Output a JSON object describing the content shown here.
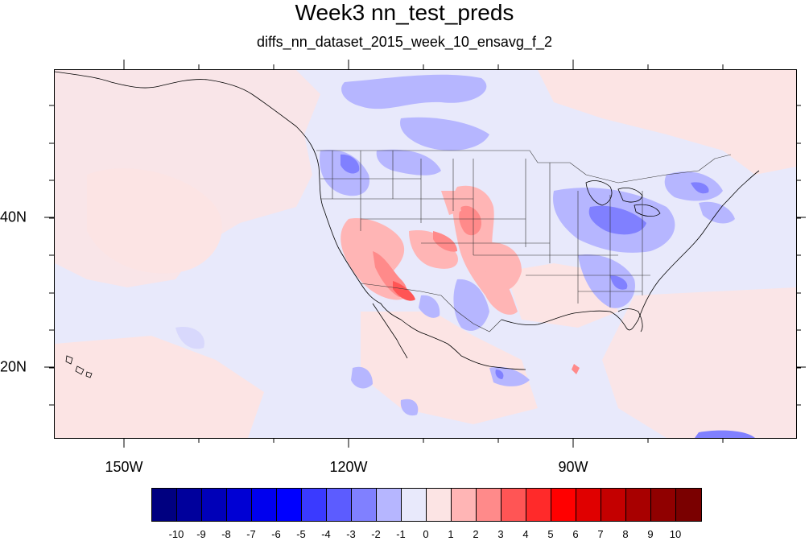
{
  "title": "Week3 nn_test_preds",
  "subtitle": "diffs_nn_dataset_2015_week_10_ensavg_f_2",
  "map": {
    "lon_range": [
      -160,
      -62
    ],
    "lat_range": [
      11,
      60
    ],
    "lon_ticks": [
      "150W",
      "120W",
      "90W"
    ],
    "lat_ticks": [
      "40N",
      "20N"
    ],
    "background_color": "#e8e9fb",
    "pattern": "near-zero differences dominate; positive (red) anomalies over the U.S. Southwest, southern Plains and Texas; negative (blue) anomalies over the Pacific Northwest, Ohio Valley, Southeast and Northeast"
  },
  "colorbar": {
    "labels": [
      "-10",
      "-9",
      "-8",
      "-7",
      "-6",
      "-5",
      "-4",
      "-3",
      "-2",
      "-1",
      "0",
      "1",
      "2",
      "3",
      "4",
      "5",
      "6",
      "7",
      "8",
      "9",
      "10"
    ],
    "colors": [
      "#000080",
      "#00009c",
      "#0000b8",
      "#0000d4",
      "#0000ee",
      "#0000ff",
      "#3a3aff",
      "#5c5cff",
      "#8080ff",
      "#b6b6ff",
      "#e8e9fb",
      "#fce4e4",
      "#ffb5b5",
      "#ff8a8a",
      "#ff5555",
      "#ff2a2a",
      "#ff0000",
      "#e00000",
      "#c40000",
      "#a80000",
      "#900000",
      "#7a0000"
    ]
  }
}
